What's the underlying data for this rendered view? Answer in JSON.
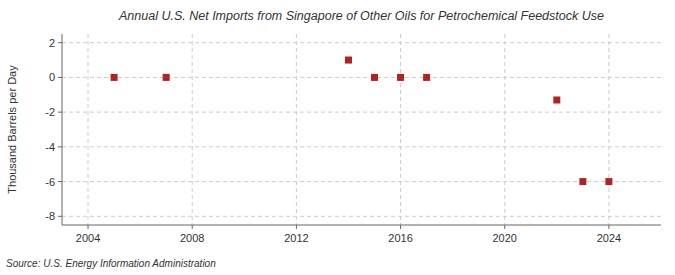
{
  "chart_data": {
    "type": "scatter",
    "title": "Annual U.S. Net Imports from Singapore of Other Oils for Petrochemical Feedstock Use",
    "ylabel": "Thousand Barrels per Day",
    "annotations": [
      "Source: U.S. Energy Information Administration"
    ],
    "x": [
      2005,
      2007,
      2014,
      2015,
      2016,
      2017,
      2022,
      2023,
      2024
    ],
    "values": [
      0,
      0,
      1.0,
      0,
      0,
      0,
      -1.3,
      -6.0,
      -6.0
    ],
    "color": "#b22222",
    "marker": "square",
    "xlim": [
      2003.0,
      2026.0
    ],
    "ylim": [
      -8.5,
      2.5
    ],
    "xticks": [
      2004,
      2008,
      2012,
      2016,
      2020,
      2024
    ],
    "yticks": [
      -8,
      -6,
      -4,
      -2,
      0,
      2
    ],
    "grid": true
  }
}
